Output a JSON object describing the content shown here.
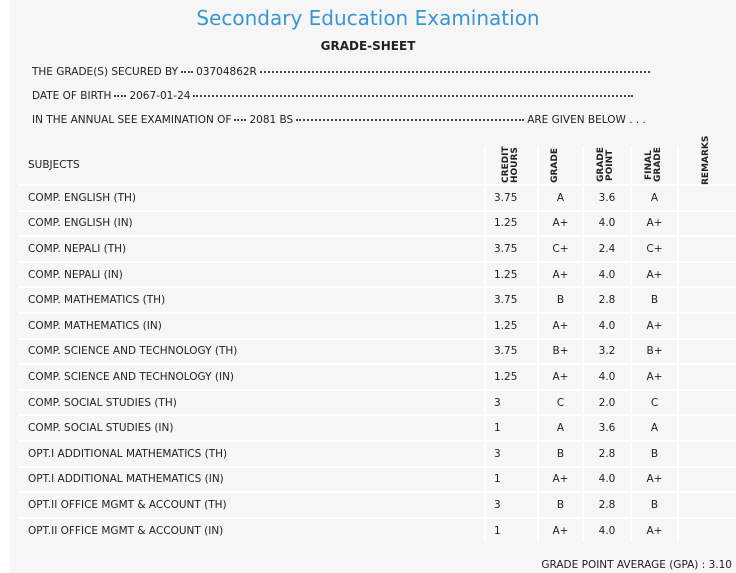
{
  "header": {
    "title": "Secondary Education Examination",
    "subtitle": "GRADE-SHEET"
  },
  "info": [
    {
      "label": "THE GRADE(S) SECURED BY",
      "value": "03704862R"
    },
    {
      "label": "DATE OF BIRTH",
      "value": "2067-01-24"
    },
    {
      "label": "IN THE ANNUAL SEE EXAMINATION OF",
      "value": "2081 BS",
      "tail": "ARE GIVEN BELOW . . ."
    }
  ],
  "table": {
    "columns": [
      "SUBJECTS",
      "CREDIT HOURS",
      "GRADE",
      "GRADE POINT",
      "FINAL GRADE",
      "REMARKS"
    ],
    "rows": [
      [
        "COMP. ENGLISH (TH)",
        "3.75",
        "A",
        "3.6",
        "A"
      ],
      [
        "COMP. ENGLISH (IN)",
        "1.25",
        "A+",
        "4.0",
        "A+"
      ],
      [
        "COMP. NEPALI (TH)",
        "3.75",
        "C+",
        "2.4",
        "C+"
      ],
      [
        "COMP. NEPALI (IN)",
        "1.25",
        "A+",
        "4.0",
        "A+"
      ],
      [
        "COMP. MATHEMATICS (TH)",
        "3.75",
        "B",
        "2.8",
        "B"
      ],
      [
        "COMP. MATHEMATICS (IN)",
        "1.25",
        "A+",
        "4.0",
        "A+"
      ],
      [
        "COMP. SCIENCE AND TECHNOLOGY (TH)",
        "3.75",
        "B+",
        "3.2",
        "B+"
      ],
      [
        "COMP. SCIENCE AND TECHNOLOGY (IN)",
        "1.25",
        "A+",
        "4.0",
        "A+"
      ],
      [
        "COMP. SOCIAL STUDIES (TH)",
        "3",
        "C",
        "2.0",
        "C"
      ],
      [
        "COMP. SOCIAL STUDIES (IN)",
        "1",
        "A",
        "3.6",
        "A"
      ],
      [
        "OPT.I ADDITIONAL MATHEMATICS (TH)",
        "3",
        "B",
        "2.8",
        "B"
      ],
      [
        "OPT.I ADDITIONAL MATHEMATICS (IN)",
        "1",
        "A+",
        "4.0",
        "A+"
      ],
      [
        "OPT.II OFFICE MGMT & ACCOUNT (TH)",
        "3",
        "B",
        "2.8",
        "B"
      ],
      [
        "OPT.II OFFICE MGMT & ACCOUNT (IN)",
        "1",
        "A+",
        "4.0",
        "A+"
      ]
    ]
  },
  "footer": {
    "label": "GRADE POINT AVERAGE (GPA) :",
    "value": "3.10"
  }
}
